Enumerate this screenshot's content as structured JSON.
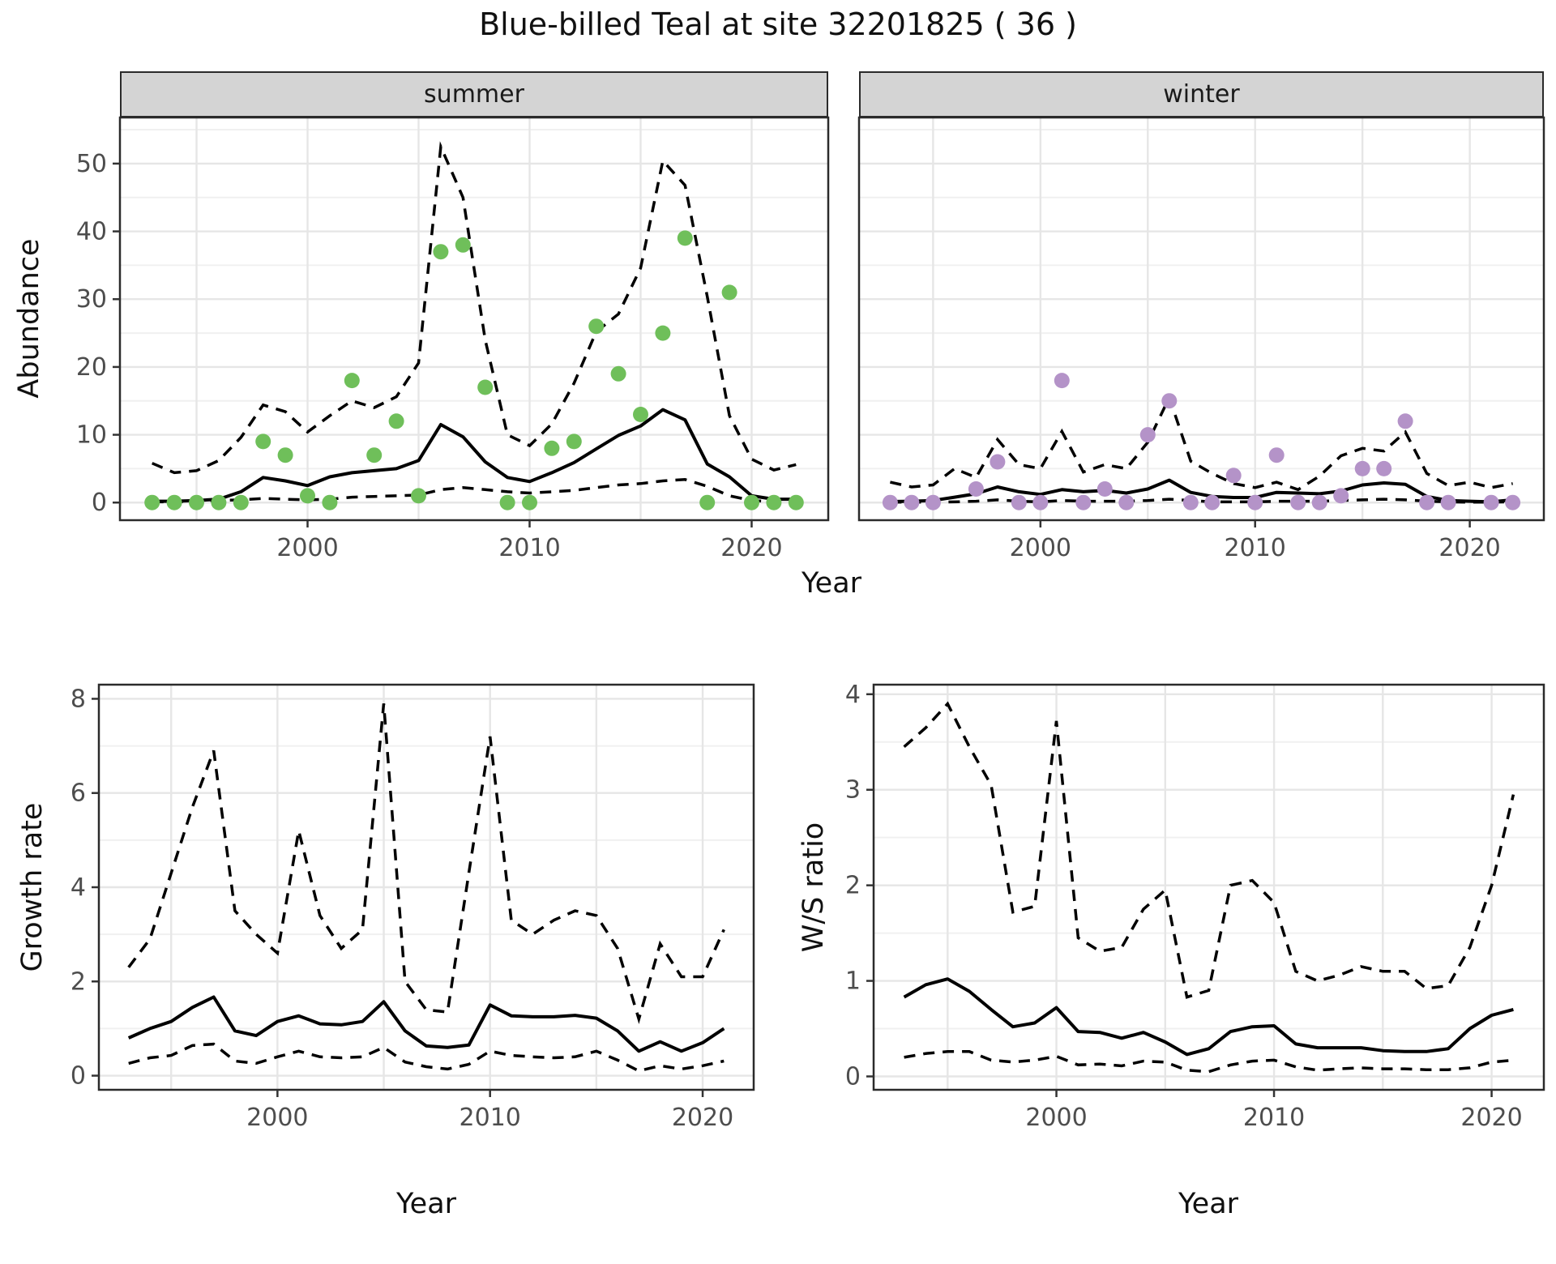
{
  "title": "Blue-billed Teal at site 32201825 ( 36 )",
  "colors": {
    "summer_points": "#6fbf5a",
    "winter_points": "#b493c8",
    "line": "#000000",
    "grid_major": "#e6e6e6",
    "grid_minor": "#f0f0f0",
    "panel_border": "#2b2b2b",
    "strip_background": "#d4d4d4",
    "tick_text": "#4d4d4d",
    "title_text": "#111111"
  },
  "chart_data": [
    {
      "id": "abundance",
      "type": "line",
      "xlabel": "Year",
      "ylabel": "Abundance",
      "x_ticks": [
        2000,
        2010,
        2020
      ],
      "y_ticks": [
        0,
        10,
        20,
        30,
        40,
        50
      ],
      "xlim": [
        1991.55,
        2023.45
      ],
      "ylim": [
        -2.6,
        56.8
      ],
      "grid_x": [
        1995,
        2000,
        2005,
        2010,
        2015,
        2020
      ],
      "years": [
        1993,
        1994,
        1995,
        1996,
        1997,
        1998,
        1999,
        2000,
        2001,
        2002,
        2003,
        2004,
        2005,
        2006,
        2007,
        2008,
        2009,
        2010,
        2011,
        2012,
        2013,
        2014,
        2015,
        2016,
        2017,
        2018,
        2019,
        2020,
        2021,
        2022
      ],
      "legend_position": "none",
      "facets": [
        {
          "label": "summer",
          "point_color": "#6fbf5a",
          "point_years": [
            1993,
            1994,
            1995,
            1996,
            1997,
            1998,
            1999,
            2000,
            2001,
            2002,
            2003,
            2004,
            2005,
            2006,
            2007,
            2008,
            2009,
            2010,
            2011,
            2012,
            2013,
            2014,
            2015,
            2016,
            2017,
            2018,
            2019,
            2020,
            2021,
            2022
          ],
          "point_values": [
            0,
            0,
            0,
            0,
            0,
            9,
            7,
            1,
            0,
            18,
            7,
            12,
            1,
            37,
            38,
            17,
            0,
            0,
            8,
            9,
            26,
            19,
            13,
            25,
            39,
            0,
            31,
            0,
            0,
            0
          ],
          "mean": [
            0.2,
            0.2,
            0.3,
            0.5,
            1.6,
            3.7,
            3.2,
            2.5,
            3.8,
            4.4,
            4.7,
            5.0,
            6.2,
            11.5,
            9.7,
            6.0,
            3.7,
            3.1,
            4.4,
            5.9,
            7.9,
            9.9,
            11.3,
            13.7,
            12.2,
            5.7,
            3.8,
            1.0,
            0.5,
            0.5
          ],
          "upper_ci": [
            5.8,
            4.4,
            4.7,
            6.2,
            9.6,
            14.4,
            13.4,
            10.4,
            12.8,
            15.0,
            14.0,
            15.6,
            20.6,
            52.5,
            45.0,
            24.0,
            10.0,
            8.4,
            11.6,
            17.6,
            25.2,
            27.8,
            34.6,
            50.4,
            46.8,
            30.4,
            12.8,
            6.4,
            4.8,
            5.6
          ],
          "lower_ci": [
            0.1,
            0.1,
            0.2,
            0.3,
            0.4,
            0.6,
            0.5,
            0.4,
            0.5,
            0.8,
            0.9,
            1.0,
            1.1,
            1.9,
            2.2,
            1.9,
            1.6,
            1.4,
            1.6,
            1.8,
            2.2,
            2.6,
            2.8,
            3.2,
            3.4,
            2.4,
            1.0,
            0.3,
            0.1,
            0.4
          ]
        },
        {
          "label": "winter",
          "point_color": "#b493c8",
          "point_years": [
            1993,
            1994,
            1995,
            1997,
            1998,
            1999,
            2000,
            2001,
            2002,
            2003,
            2004,
            2005,
            2006,
            2007,
            2008,
            2009,
            2010,
            2011,
            2012,
            2013,
            2014,
            2015,
            2016,
            2017,
            2018,
            2019,
            2021,
            2022
          ],
          "point_values": [
            0,
            0,
            0,
            2,
            6,
            0,
            0,
            18,
            0,
            2,
            0,
            10,
            15,
            0,
            0,
            4,
            0,
            7,
            0,
            0,
            1,
            5,
            5,
            12,
            0,
            0,
            0,
            0
          ],
          "mean": [
            0.15,
            0.2,
            0.3,
            0.8,
            1.3,
            2.3,
            1.6,
            1.2,
            1.9,
            1.6,
            1.8,
            1.4,
            2.0,
            3.3,
            1.5,
            0.9,
            0.75,
            0.75,
            1.5,
            1.4,
            1.3,
            1.7,
            2.6,
            2.9,
            2.7,
            0.9,
            0.3,
            0.2,
            0.1,
            0.4
          ],
          "upper_ci": [
            3.0,
            2.3,
            2.6,
            5.0,
            3.7,
            9.3,
            5.6,
            5.0,
            10.5,
            4.5,
            5.6,
            5.0,
            8.9,
            15.5,
            6.1,
            4.3,
            2.8,
            2.2,
            3.0,
            1.9,
            3.9,
            6.9,
            8.0,
            7.6,
            10.4,
            4.3,
            2.5,
            3.0,
            2.2,
            2.8
          ],
          "lower_ci": [
            0.05,
            0.05,
            0.05,
            0.1,
            0.2,
            0.4,
            0.2,
            0.1,
            0.3,
            0.2,
            0.2,
            0.2,
            0.3,
            0.5,
            0.3,
            0.1,
            0.1,
            0.1,
            0.2,
            0.2,
            0.2,
            0.3,
            0.4,
            0.5,
            0.4,
            0.2,
            0.1,
            0.05,
            0.05,
            0.1
          ]
        }
      ]
    },
    {
      "id": "growth",
      "type": "line",
      "xlabel": "Year",
      "ylabel": "Growth rate",
      "x_ticks": [
        2000,
        2010,
        2020
      ],
      "y_ticks": [
        0,
        2,
        4,
        6,
        8
      ],
      "xlim": [
        1991.6,
        2022.4
      ],
      "ylim": [
        -0.3,
        8.3
      ],
      "grid_x": [
        1995,
        2000,
        2005,
        2010,
        2015,
        2020
      ],
      "years": [
        1993,
        1994,
        1995,
        1996,
        1997,
        1998,
        1999,
        2000,
        2001,
        2002,
        2003,
        2004,
        2005,
        2006,
        2007,
        2008,
        2009,
        2010,
        2011,
        2012,
        2013,
        2014,
        2015,
        2016,
        2017,
        2018,
        2019,
        2020,
        2021
      ],
      "legend_position": "none",
      "mean": [
        0.8,
        1.0,
        1.15,
        1.45,
        1.67,
        0.95,
        0.85,
        1.15,
        1.27,
        1.1,
        1.08,
        1.15,
        1.57,
        0.95,
        0.63,
        0.6,
        0.65,
        1.5,
        1.27,
        1.25,
        1.25,
        1.28,
        1.22,
        0.95,
        0.52,
        0.72,
        0.52,
        0.7,
        1.0
      ],
      "upper_ci": [
        2.3,
        2.9,
        4.3,
        5.7,
        6.9,
        3.5,
        3.0,
        2.6,
        5.2,
        3.4,
        2.7,
        3.1,
        7.9,
        2.0,
        1.4,
        1.35,
        4.3,
        7.2,
        3.3,
        3.0,
        3.3,
        3.5,
        3.4,
        2.7,
        1.2,
        2.8,
        2.1,
        2.1,
        3.1
      ],
      "lower_ci": [
        0.26,
        0.38,
        0.43,
        0.64,
        0.67,
        0.31,
        0.26,
        0.4,
        0.52,
        0.4,
        0.38,
        0.4,
        0.6,
        0.29,
        0.19,
        0.14,
        0.24,
        0.52,
        0.43,
        0.4,
        0.38,
        0.4,
        0.52,
        0.33,
        0.1,
        0.21,
        0.14,
        0.21,
        0.31
      ]
    },
    {
      "id": "ws",
      "type": "line",
      "xlabel": "Year",
      "ylabel": "W/S ratio",
      "x_ticks": [
        2000,
        2010,
        2020
      ],
      "y_ticks": [
        0,
        1,
        2,
        3,
        4
      ],
      "xlim": [
        1991.6,
        2022.4
      ],
      "ylim": [
        -0.14,
        4.1
      ],
      "grid_x": [
        1995,
        2000,
        2005,
        2010,
        2015,
        2020
      ],
      "years": [
        1993,
        1994,
        1995,
        1996,
        1997,
        1998,
        1999,
        2000,
        2001,
        2002,
        2003,
        2004,
        2005,
        2006,
        2007,
        2008,
        2009,
        2010,
        2011,
        2012,
        2013,
        2014,
        2015,
        2016,
        2017,
        2018,
        2019,
        2020,
        2021
      ],
      "legend_position": "none",
      "mean": [
        0.83,
        0.96,
        1.02,
        0.89,
        0.7,
        0.52,
        0.56,
        0.72,
        0.47,
        0.46,
        0.4,
        0.46,
        0.36,
        0.23,
        0.29,
        0.47,
        0.52,
        0.53,
        0.34,
        0.3,
        0.3,
        0.3,
        0.27,
        0.26,
        0.26,
        0.29,
        0.5,
        0.64,
        0.7
      ],
      "upper_ci": [
        3.45,
        3.65,
        3.9,
        3.45,
        3.05,
        1.72,
        1.78,
        3.72,
        1.45,
        1.31,
        1.35,
        1.75,
        1.95,
        0.83,
        0.9,
        2.0,
        2.05,
        1.82,
        1.1,
        1.0,
        1.06,
        1.15,
        1.1,
        1.1,
        0.92,
        0.95,
        1.35,
        2.0,
        2.95
      ],
      "lower_ci": [
        0.2,
        0.24,
        0.26,
        0.26,
        0.17,
        0.15,
        0.17,
        0.21,
        0.12,
        0.13,
        0.11,
        0.16,
        0.15,
        0.065,
        0.05,
        0.12,
        0.16,
        0.17,
        0.1,
        0.065,
        0.08,
        0.09,
        0.08,
        0.08,
        0.07,
        0.07,
        0.09,
        0.15,
        0.17
      ]
    }
  ]
}
